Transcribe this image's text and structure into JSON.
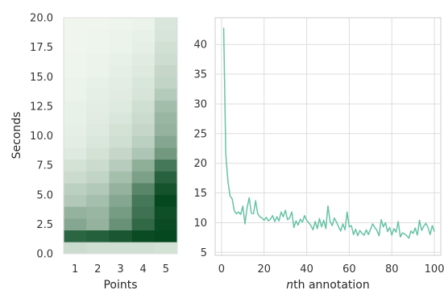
{
  "chart_data": [
    {
      "type": "heatmap",
      "xlabel": "Points",
      "ylabel": "Seconds",
      "x_categories": [
        "1",
        "2",
        "3",
        "4",
        "5"
      ],
      "y_ticks": [
        "0.0",
        "2.5",
        "5.0",
        "7.5",
        "10.0",
        "12.5",
        "15.0",
        "17.5",
        "20.0"
      ],
      "ylim": [
        0,
        20
      ],
      "bin_size": 1,
      "colormap": "Greens",
      "intensity_note": "rows listed from 0-1 s upward; values are relative shading 0-1",
      "intensity": [
        [
          0.18,
          0.16,
          0.16,
          0.16,
          0.14
        ],
        [
          0.82,
          0.85,
          0.9,
          0.96,
          0.98
        ],
        [
          0.46,
          0.4,
          0.58,
          0.8,
          0.96
        ],
        [
          0.4,
          0.38,
          0.52,
          0.75,
          0.94
        ],
        [
          0.28,
          0.33,
          0.46,
          0.72,
          0.98
        ],
        [
          0.24,
          0.28,
          0.4,
          0.64,
          0.92
        ],
        [
          0.18,
          0.22,
          0.33,
          0.5,
          0.84
        ],
        [
          0.14,
          0.18,
          0.26,
          0.42,
          0.72
        ],
        [
          0.1,
          0.14,
          0.2,
          0.3,
          0.54
        ],
        [
          0.08,
          0.12,
          0.16,
          0.24,
          0.46
        ],
        [
          0.07,
          0.1,
          0.14,
          0.2,
          0.4
        ],
        [
          0.06,
          0.09,
          0.12,
          0.18,
          0.38
        ],
        [
          0.06,
          0.08,
          0.1,
          0.16,
          0.34
        ],
        [
          0.05,
          0.07,
          0.09,
          0.13,
          0.27
        ],
        [
          0.05,
          0.06,
          0.08,
          0.12,
          0.22
        ],
        [
          0.04,
          0.05,
          0.07,
          0.1,
          0.2
        ],
        [
          0.04,
          0.05,
          0.06,
          0.09,
          0.17
        ],
        [
          0.03,
          0.04,
          0.05,
          0.07,
          0.15
        ],
        [
          0.03,
          0.04,
          0.05,
          0.06,
          0.13
        ],
        [
          0.03,
          0.03,
          0.04,
          0.05,
          0.12
        ]
      ]
    },
    {
      "type": "line",
      "xlabel_prefix": "n",
      "xlabel": "th annotation",
      "ylabel": "",
      "xlim": [
        -3,
        103
      ],
      "ylim": [
        4.5,
        44.5
      ],
      "x_ticks": [
        "0",
        "20",
        "40",
        "60",
        "80",
        "100"
      ],
      "y_ticks": [
        "5",
        "10",
        "15",
        "20",
        "25",
        "30",
        "35",
        "40"
      ],
      "grid": true,
      "color": "#66c2a5",
      "series": [
        {
          "x": [
            1,
            2,
            3,
            4,
            5,
            6,
            7,
            8,
            9,
            10,
            11,
            12,
            13,
            14,
            15,
            16,
            17,
            18,
            19,
            20,
            21,
            22,
            23,
            24,
            25,
            26,
            27,
            28,
            29,
            30,
            31,
            32,
            33,
            34,
            35,
            36,
            37,
            38,
            39,
            40,
            41,
            42,
            43,
            44,
            45,
            46,
            47,
            48,
            49,
            50,
            51,
            52,
            53,
            54,
            55,
            56,
            57,
            58,
            59,
            60,
            61,
            62,
            63,
            64,
            65,
            66,
            67,
            68,
            69,
            70,
            71,
            72,
            73,
            74,
            75,
            76,
            77,
            78,
            79,
            80,
            81,
            82,
            83,
            84,
            85,
            86,
            87,
            88,
            89,
            90,
            91,
            92,
            93,
            94,
            95,
            96,
            97,
            98,
            99,
            100
          ],
          "values": [
            42.8,
            21.5,
            17.0,
            14.5,
            14.0,
            12.0,
            11.5,
            11.8,
            11.4,
            12.8,
            9.8,
            12.5,
            14.2,
            11.6,
            11.5,
            13.7,
            11.5,
            11.0,
            10.8,
            10.4,
            10.9,
            10.3,
            10.6,
            11.2,
            10.2,
            11.0,
            10.3,
            11.8,
            11.0,
            12.1,
            10.5,
            10.8,
            11.8,
            9.2,
            10.3,
            9.6,
            10.6,
            10.1,
            11.2,
            10.4,
            10.0,
            9.5,
            8.8,
            10.2,
            9.0,
            10.7,
            9.3,
            10.4,
            9.0,
            12.8,
            10.2,
            9.5,
            10.8,
            10.1,
            9.3,
            8.6,
            9.8,
            8.8,
            11.8,
            9.3,
            9.5,
            8.0,
            8.9,
            7.8,
            8.7,
            8.2,
            7.9,
            8.8,
            8.0,
            8.9,
            9.8,
            9.2,
            8.7,
            7.8,
            10.5,
            9.3,
            10.0,
            8.5,
            9.2,
            7.9,
            9.0,
            8.4,
            10.2,
            7.6,
            8.3,
            8.1,
            7.8,
            7.4,
            8.6,
            8.2,
            9.1,
            7.9,
            10.4,
            8.7,
            9.4,
            9.9,
            9.2,
            8.0,
            9.5,
            8.5
          ]
        }
      ]
    }
  ]
}
